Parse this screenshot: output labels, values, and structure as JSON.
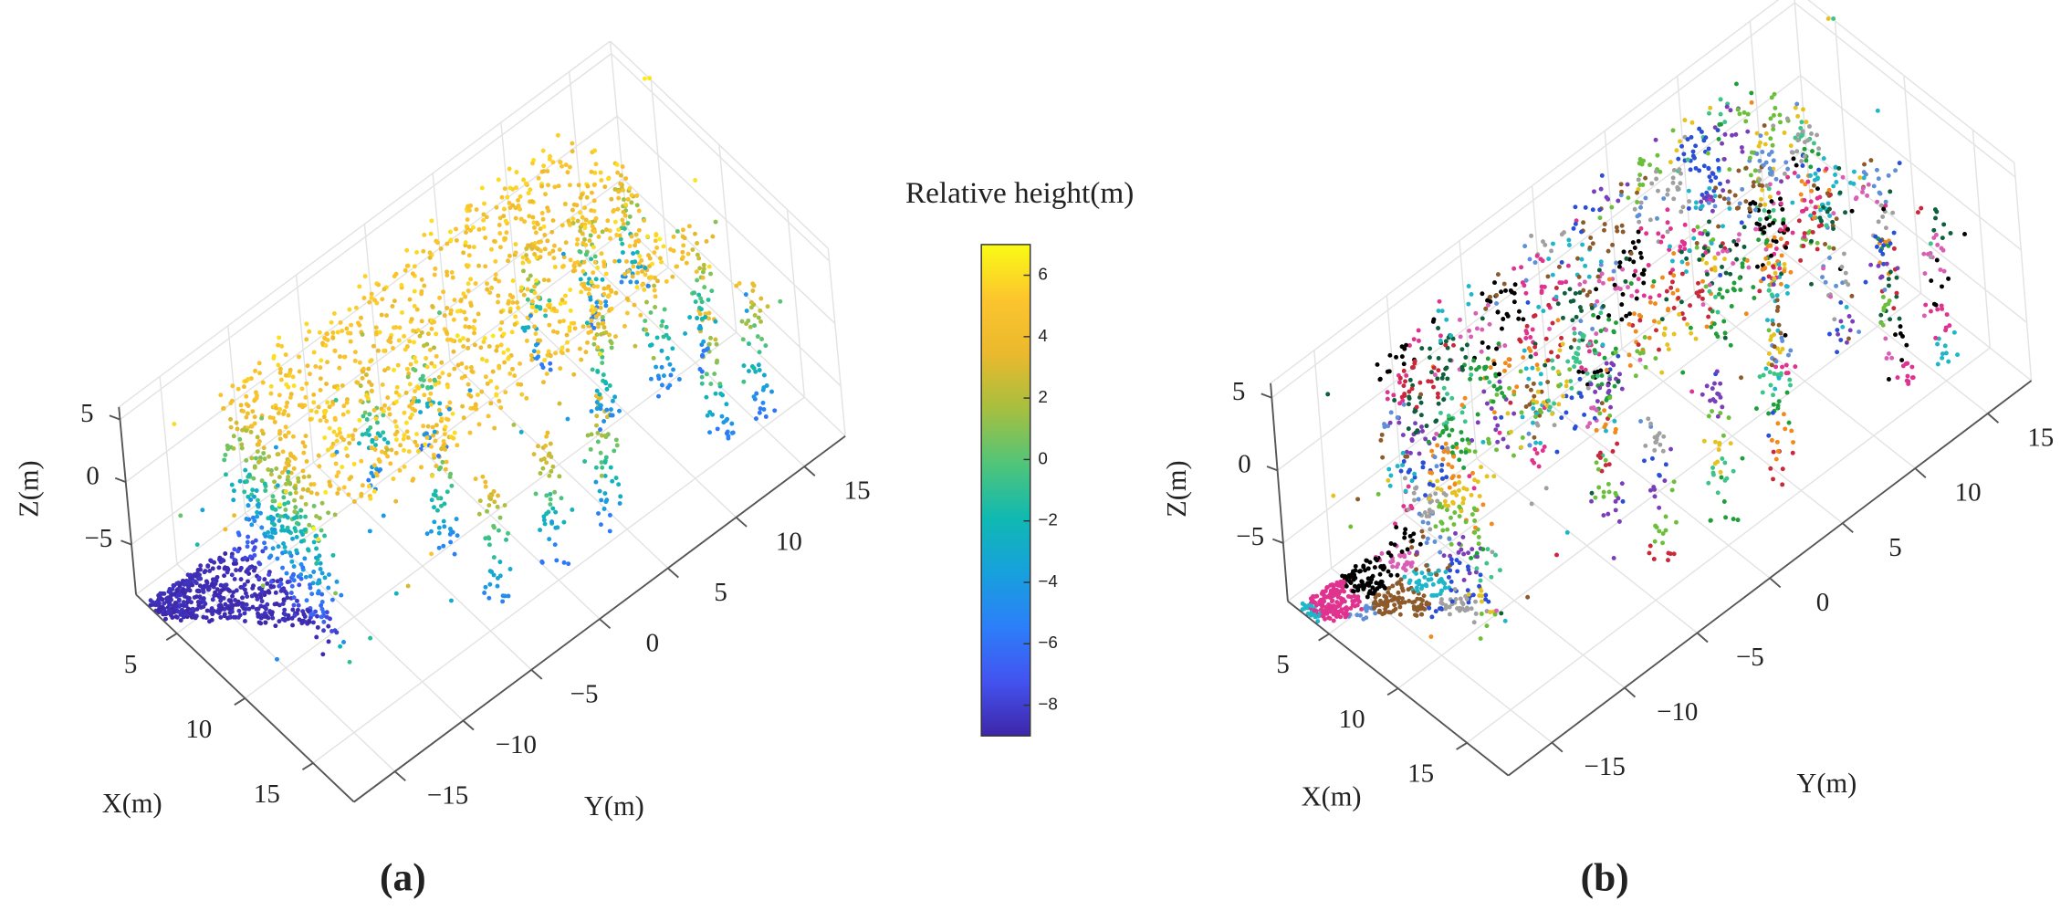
{
  "chart_data": [
    {
      "type": "scatter3d",
      "panel_label": "(a)",
      "xlabel": "X(m)",
      "ylabel": "Y(m)",
      "zlabel": "Z(m)",
      "xlim": [
        2,
        18
      ],
      "ylim": [
        -18,
        18
      ],
      "zlim": [
        -9,
        6
      ],
      "xticks": [
        5,
        10,
        15
      ],
      "yticks": [
        {
          "value": -15,
          "label": "−15"
        },
        {
          "value": -10,
          "label": "−10"
        },
        {
          "value": -5,
          "label": "−5"
        },
        0,
        5,
        10,
        15
      ],
      "zticks": [
        5,
        0,
        {
          "value": -5,
          "label": "−5"
        }
      ],
      "grid": true,
      "color_by": "height",
      "colorbar": {
        "title": "Relative height(m)",
        "lim": [
          -9,
          7
        ],
        "ticks": [
          {
            "value": -8,
            "label": "−8"
          },
          {
            "value": -6,
            "label": "−6"
          },
          {
            "value": -4,
            "label": "−4"
          },
          {
            "value": -2,
            "label": "−2"
          },
          0,
          2,
          4,
          6
        ],
        "colormap": [
          "#3e26a8",
          "#4353f0",
          "#2c7ff9",
          "#17a1dc",
          "#10b9b1",
          "#52c578",
          "#a7bf3f",
          "#eab92d",
          "#fcc52e",
          "#f9fb14"
        ]
      }
    },
    {
      "type": "scatter3d",
      "panel_label": "(b)",
      "xlabel": "X(m)",
      "ylabel": "Y(m)",
      "zlabel": "Z(m)",
      "xlim": [
        2,
        18
      ],
      "ylim": [
        -18,
        18
      ],
      "zlim": [
        -9,
        6
      ],
      "xticks": [
        5,
        10,
        15
      ],
      "yticks": [
        {
          "value": -15,
          "label": "−15"
        },
        {
          "value": -10,
          "label": "−10"
        },
        {
          "value": -5,
          "label": "−5"
        },
        0,
        5,
        10,
        15
      ],
      "zticks": [
        5,
        0,
        {
          "value": -5,
          "label": "−5"
        }
      ],
      "grid": true,
      "color_by": "cluster",
      "cluster_colors": [
        "#1f9e3a",
        "#2a4fd6",
        "#e0338f",
        "#f08a1c",
        "#7a3fb8",
        "#1fb6c9",
        "#c8283a",
        "#6bbf3a",
        "#8c5a2b",
        "#0f5e3c",
        "#e6c21f",
        "#5f8fd9",
        "#d95fb5",
        "#3cc48a",
        "#a0a0a0",
        "#000000"
      ]
    }
  ]
}
